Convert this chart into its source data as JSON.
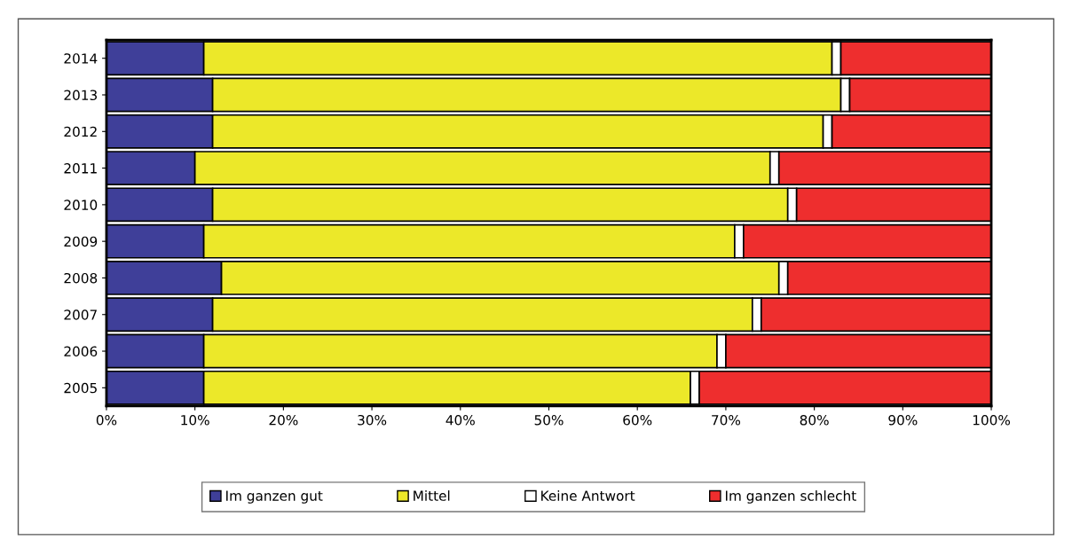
{
  "chart_data": {
    "type": "bar",
    "orientation": "horizontal",
    "stacked": true,
    "categories": [
      "2014",
      "2013",
      "2012",
      "2011",
      "2010",
      "2009",
      "2008",
      "2007",
      "2006",
      "2005"
    ],
    "series": [
      {
        "name": "Im ganzen gut",
        "color": "#3f3f99",
        "values": [
          11,
          12,
          12,
          10,
          12,
          11,
          13,
          12,
          11,
          11
        ]
      },
      {
        "name": "Mittel",
        "color": "#ece829",
        "values": [
          71,
          71,
          69,
          65,
          65,
          60,
          63,
          61,
          58,
          55
        ]
      },
      {
        "name": "Keine Antwort",
        "color": "#ffffff",
        "values": [
          1,
          1,
          1,
          1,
          1,
          1,
          1,
          1,
          1,
          1
        ]
      },
      {
        "name": "Im ganzen schlecht",
        "color": "#ee2e2e",
        "values": [
          17,
          16,
          18,
          24,
          22,
          28,
          23,
          26,
          30,
          33
        ]
      }
    ],
    "xlim": [
      0,
      100
    ],
    "xticks": [
      {
        "value": 0,
        "label": "0%"
      },
      {
        "value": 10,
        "label": "10%"
      },
      {
        "value": 20,
        "label": "20%"
      },
      {
        "value": 30,
        "label": "30%"
      },
      {
        "value": 40,
        "label": "40%"
      },
      {
        "value": 50,
        "label": "50%"
      },
      {
        "value": 60,
        "label": "60%"
      },
      {
        "value": 70,
        "label": "70%"
      },
      {
        "value": 80,
        "label": "80%"
      },
      {
        "value": 90,
        "label": "90%"
      },
      {
        "value": 100,
        "label": "100%"
      }
    ],
    "grid": false,
    "legend": "bottom"
  }
}
